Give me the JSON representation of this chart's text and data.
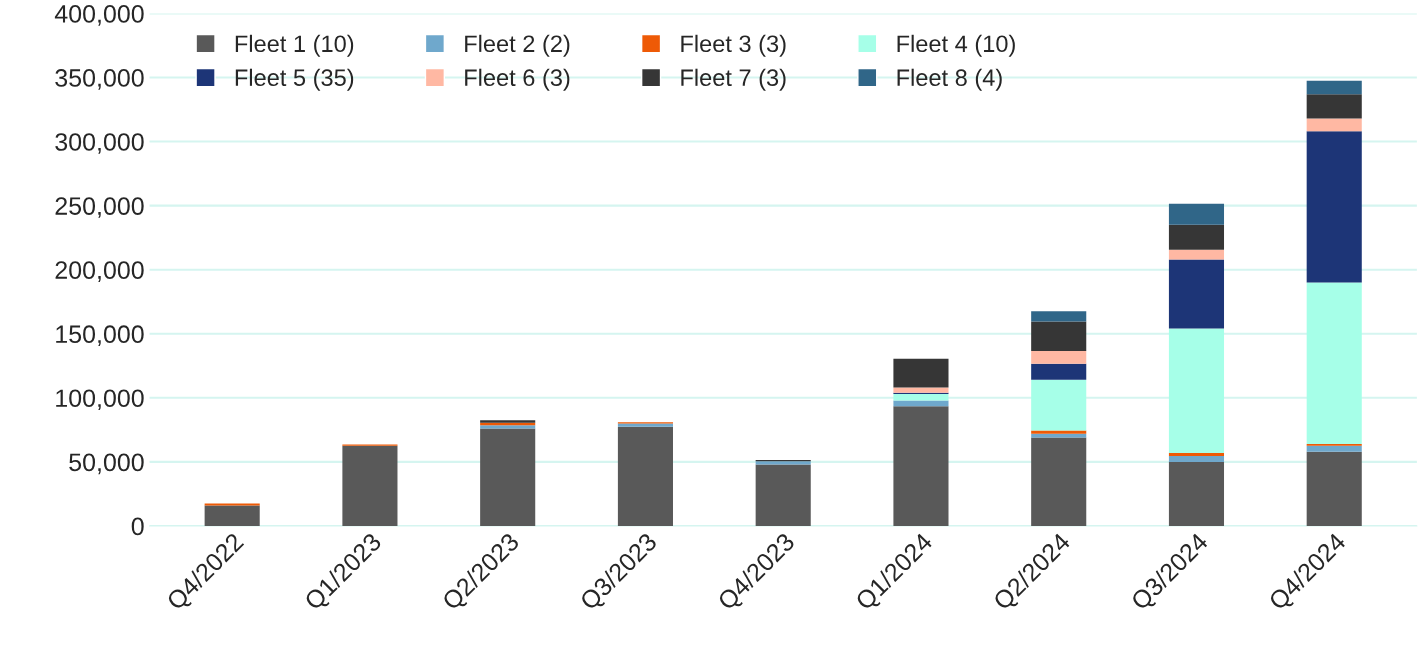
{
  "chart_data": {
    "type": "bar",
    "stacked": true,
    "categories": [
      "Q4/2022",
      "Q1/2023",
      "Q2/2023",
      "Q3/2023",
      "Q4/2023",
      "Q1/2024",
      "Q2/2024",
      "Q3/2024",
      "Q4/2024"
    ],
    "series": [
      {
        "name": "Fleet 1 (10)",
        "color": "#595959",
        "values": [
          16000,
          62500,
          76000,
          77500,
          48000,
          93500,
          69000,
          50000,
          58000
        ]
      },
      {
        "name": "Fleet 2 (2)",
        "color": "#6fa8cc",
        "values": [
          0,
          0,
          2500,
          2500,
          2500,
          4500,
          3000,
          4500,
          4500
        ]
      },
      {
        "name": "Fleet 3 (3)",
        "color": "#ee5a06",
        "values": [
          1500,
          1000,
          2000,
          1000,
          0,
          null,
          2500,
          2500,
          1500
        ]
      },
      {
        "name": "Fleet 4 (10)",
        "color": "#a6ffe8",
        "values": [
          0,
          0,
          0,
          0,
          0,
          5000,
          39500,
          97000,
          126000
        ]
      },
      {
        "name": "Fleet 5 (35)",
        "color": "#1d3577",
        "values": [
          0,
          0,
          0,
          0,
          0,
          1000,
          12500,
          54000,
          118000
        ]
      },
      {
        "name": "Fleet 6 (3)",
        "color": "#ffb8a3",
        "values": [
          0,
          0,
          0,
          null,
          0,
          4000,
          10000,
          7500,
          10000
        ]
      },
      {
        "name": "Fleet 7 (3)",
        "color": "#363636",
        "values": [
          0,
          0,
          2000,
          0,
          1000,
          22500,
          23000,
          19500,
          19000
        ]
      },
      {
        "name": "Fleet 8 (4)",
        "color": "#306688",
        "values": [
          0,
          0,
          0,
          0,
          0,
          0,
          8000,
          16500,
          10500
        ]
      }
    ],
    "ylim": [
      0,
      400000
    ],
    "yticks": [
      {
        "value": 0,
        "label": "0"
      },
      {
        "value": 50000,
        "label": "50,000"
      },
      {
        "value": 100000,
        "label": "100,000"
      },
      {
        "value": 150000,
        "label": "150,000"
      },
      {
        "value": 200000,
        "label": "200,000"
      },
      {
        "value": 250000,
        "label": "250,000"
      },
      {
        "value": 300000,
        "label": "300,000"
      },
      {
        "value": 350000,
        "label": "350,000"
      },
      {
        "value": 400000,
        "label": "400,000"
      }
    ],
    "grid": "y",
    "legend": "top left"
  }
}
